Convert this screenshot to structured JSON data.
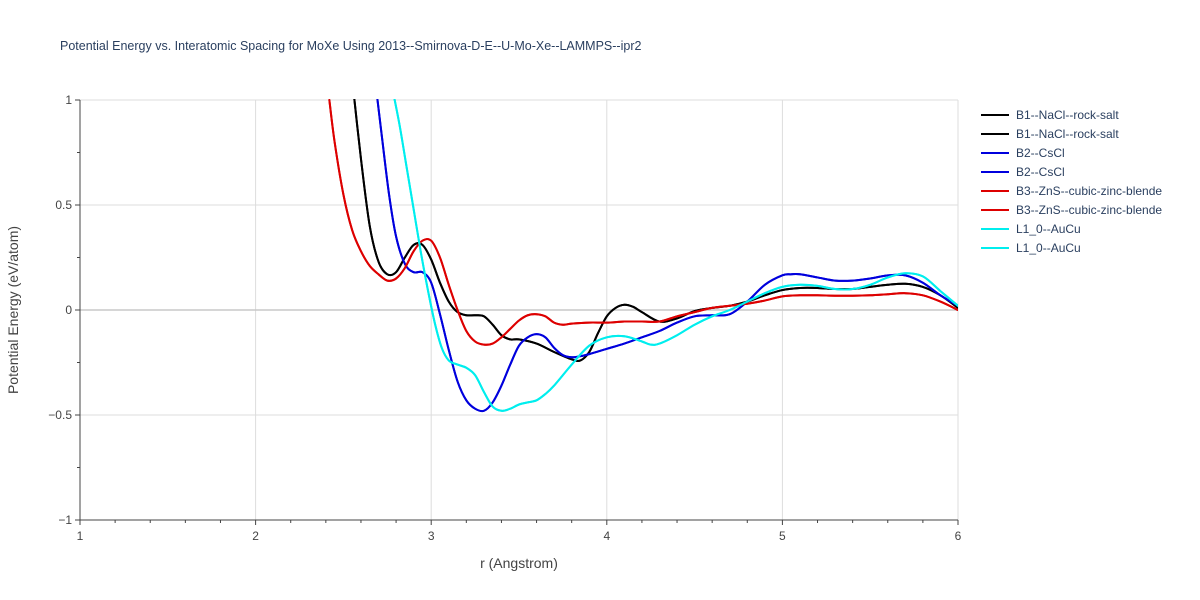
{
  "chart_data": {
    "type": "line",
    "title": "Potential Energy vs. Interatomic Spacing for MoXe Using 2013--Smirnova-D-E--U-Mo-Xe--LAMMPS--ipr2",
    "xlabel": "r (Angstrom)",
    "ylabel": "Potential Energy (eV/atom)",
    "xlim": [
      1,
      6
    ],
    "ylim": [
      -1,
      1
    ],
    "xticks": [
      1,
      2,
      3,
      4,
      5,
      6
    ],
    "xtick_labels": [
      "1",
      "2",
      "3",
      "4",
      "5",
      "6"
    ],
    "yticks": [
      -1,
      -0.5,
      0,
      0.5,
      1
    ],
    "ytick_labels": [
      "−1",
      "−0.5",
      "0",
      "0.5",
      "1"
    ],
    "grid": true,
    "legend_position": "right",
    "series": [
      {
        "name": "B1--NaCl--rock-salt",
        "color": "#000000",
        "x": [
          2.55,
          2.6,
          2.65,
          2.7,
          2.75,
          2.8,
          2.85,
          2.9,
          2.95,
          3.0,
          3.05,
          3.1,
          3.15,
          3.2,
          3.25,
          3.3,
          3.35,
          3.4,
          3.45,
          3.5,
          3.6,
          3.7,
          3.8,
          3.85,
          3.9,
          3.95,
          4.0,
          4.05,
          4.1,
          4.15,
          4.2,
          4.3,
          4.4,
          4.5,
          4.6,
          4.7,
          4.8,
          4.9,
          5.0,
          5.1,
          5.2,
          5.3,
          5.4,
          5.5,
          5.6,
          5.7,
          5.8,
          5.9,
          6.0
        ],
        "y": [
          1.1,
          0.72,
          0.4,
          0.23,
          0.17,
          0.18,
          0.25,
          0.31,
          0.31,
          0.24,
          0.13,
          0.04,
          -0.01,
          -0.025,
          -0.025,
          -0.03,
          -0.07,
          -0.12,
          -0.14,
          -0.14,
          -0.16,
          -0.2,
          -0.235,
          -0.24,
          -0.2,
          -0.11,
          -0.03,
          0.01,
          0.025,
          0.015,
          -0.01,
          -0.055,
          -0.04,
          -0.005,
          0.01,
          0.02,
          0.04,
          0.07,
          0.095,
          0.105,
          0.105,
          0.1,
          0.1,
          0.11,
          0.12,
          0.125,
          0.11,
          0.07,
          0.01
        ]
      },
      {
        "name": "B1--NaCl--rock-salt",
        "color": "#000000",
        "x": [
          2.55,
          2.6,
          2.65,
          2.7,
          2.75,
          2.8,
          2.85,
          2.9,
          2.95,
          3.0,
          3.05,
          3.1,
          3.15,
          3.2,
          3.25,
          3.3,
          3.35,
          3.4,
          3.45,
          3.5,
          3.6,
          3.7,
          3.8,
          3.85,
          3.9,
          3.95,
          4.0,
          4.05,
          4.1,
          4.15,
          4.2,
          4.3,
          4.4,
          4.5,
          4.6,
          4.7,
          4.8,
          4.9,
          5.0,
          5.1,
          5.2,
          5.3,
          5.4,
          5.5,
          5.6,
          5.7,
          5.8,
          5.9,
          6.0
        ],
        "y": [
          1.1,
          0.72,
          0.4,
          0.23,
          0.17,
          0.18,
          0.25,
          0.31,
          0.31,
          0.24,
          0.13,
          0.04,
          -0.01,
          -0.025,
          -0.025,
          -0.03,
          -0.07,
          -0.12,
          -0.14,
          -0.14,
          -0.16,
          -0.2,
          -0.235,
          -0.24,
          -0.2,
          -0.11,
          -0.03,
          0.01,
          0.025,
          0.015,
          -0.01,
          -0.055,
          -0.04,
          -0.005,
          0.01,
          0.02,
          0.04,
          0.07,
          0.095,
          0.105,
          0.105,
          0.1,
          0.1,
          0.11,
          0.12,
          0.125,
          0.11,
          0.07,
          0.01
        ]
      },
      {
        "name": "B2--CsCl",
        "color": "#0000dd",
        "x": [
          2.68,
          2.72,
          2.76,
          2.8,
          2.85,
          2.9,
          2.95,
          3.0,
          3.05,
          3.1,
          3.15,
          3.2,
          3.25,
          3.3,
          3.35,
          3.4,
          3.45,
          3.5,
          3.55,
          3.6,
          3.65,
          3.7,
          3.75,
          3.8,
          3.85,
          3.9,
          4.0,
          4.1,
          4.2,
          4.3,
          4.4,
          4.5,
          4.6,
          4.7,
          4.8,
          4.9,
          5.0,
          5.05,
          5.1,
          5.2,
          5.3,
          5.4,
          5.5,
          5.6,
          5.7,
          5.8,
          5.9,
          6.0
        ],
        "y": [
          1.1,
          0.82,
          0.55,
          0.35,
          0.22,
          0.18,
          0.18,
          0.13,
          -0.02,
          -0.19,
          -0.34,
          -0.43,
          -0.47,
          -0.48,
          -0.44,
          -0.36,
          -0.26,
          -0.17,
          -0.13,
          -0.115,
          -0.13,
          -0.18,
          -0.215,
          -0.225,
          -0.22,
          -0.21,
          -0.185,
          -0.16,
          -0.13,
          -0.1,
          -0.06,
          -0.03,
          -0.025,
          -0.02,
          0.04,
          0.12,
          0.165,
          0.17,
          0.17,
          0.155,
          0.14,
          0.14,
          0.15,
          0.165,
          0.165,
          0.13,
          0.07,
          0.02
        ]
      },
      {
        "name": "B2--CsCl",
        "color": "#0000dd",
        "x": [
          2.68,
          2.72,
          2.76,
          2.8,
          2.85,
          2.9,
          2.95,
          3.0,
          3.05,
          3.1,
          3.15,
          3.2,
          3.25,
          3.3,
          3.35,
          3.4,
          3.45,
          3.5,
          3.55,
          3.6,
          3.65,
          3.7,
          3.75,
          3.8,
          3.85,
          3.9,
          4.0,
          4.1,
          4.2,
          4.3,
          4.4,
          4.5,
          4.6,
          4.7,
          4.8,
          4.9,
          5.0,
          5.05,
          5.1,
          5.2,
          5.3,
          5.4,
          5.5,
          5.6,
          5.7,
          5.8,
          5.9,
          6.0
        ],
        "y": [
          1.1,
          0.82,
          0.55,
          0.35,
          0.22,
          0.18,
          0.18,
          0.13,
          -0.02,
          -0.19,
          -0.34,
          -0.43,
          -0.47,
          -0.48,
          -0.44,
          -0.36,
          -0.26,
          -0.17,
          -0.13,
          -0.115,
          -0.13,
          -0.18,
          -0.215,
          -0.225,
          -0.22,
          -0.21,
          -0.185,
          -0.16,
          -0.13,
          -0.1,
          -0.06,
          -0.03,
          -0.025,
          -0.02,
          0.04,
          0.12,
          0.165,
          0.17,
          0.17,
          0.155,
          0.14,
          0.14,
          0.15,
          0.165,
          0.165,
          0.13,
          0.07,
          0.02
        ]
      },
      {
        "name": "B3--ZnS--cubic-zinc-blende",
        "color": "#dd0000",
        "x": [
          2.42,
          2.45,
          2.5,
          2.55,
          2.6,
          2.65,
          2.7,
          2.75,
          2.8,
          2.85,
          2.9,
          2.95,
          3.0,
          3.05,
          3.1,
          3.15,
          3.2,
          3.25,
          3.3,
          3.35,
          3.4,
          3.45,
          3.5,
          3.55,
          3.6,
          3.65,
          3.7,
          3.75,
          3.8,
          3.9,
          4.0,
          4.1,
          4.2,
          4.3,
          4.4,
          4.5,
          4.6,
          4.7,
          4.8,
          4.9,
          5.0,
          5.1,
          5.2,
          5.3,
          5.4,
          5.5,
          5.6,
          5.7,
          5.8,
          5.9,
          6.0
        ],
        "y": [
          1.0,
          0.8,
          0.55,
          0.38,
          0.28,
          0.21,
          0.17,
          0.14,
          0.15,
          0.2,
          0.28,
          0.33,
          0.33,
          0.25,
          0.12,
          0.0,
          -0.1,
          -0.15,
          -0.165,
          -0.16,
          -0.13,
          -0.09,
          -0.05,
          -0.025,
          -0.02,
          -0.03,
          -0.06,
          -0.07,
          -0.065,
          -0.06,
          -0.06,
          -0.055,
          -0.055,
          -0.055,
          -0.03,
          -0.01,
          0.01,
          0.02,
          0.03,
          0.045,
          0.065,
          0.07,
          0.07,
          0.068,
          0.068,
          0.07,
          0.075,
          0.08,
          0.07,
          0.04,
          0.0
        ]
      },
      {
        "name": "B3--ZnS--cubic-zinc-blende",
        "color": "#dd0000",
        "x": [
          2.42,
          2.45,
          2.5,
          2.55,
          2.6,
          2.65,
          2.7,
          2.75,
          2.8,
          2.85,
          2.9,
          2.95,
          3.0,
          3.05,
          3.1,
          3.15,
          3.2,
          3.25,
          3.3,
          3.35,
          3.4,
          3.45,
          3.5,
          3.55,
          3.6,
          3.65,
          3.7,
          3.75,
          3.8,
          3.9,
          4.0,
          4.1,
          4.2,
          4.3,
          4.4,
          4.5,
          4.6,
          4.7,
          4.8,
          4.9,
          5.0,
          5.1,
          5.2,
          5.3,
          5.4,
          5.5,
          5.6,
          5.7,
          5.8,
          5.9,
          6.0
        ],
        "y": [
          1.0,
          0.8,
          0.55,
          0.38,
          0.28,
          0.21,
          0.17,
          0.14,
          0.15,
          0.2,
          0.28,
          0.33,
          0.33,
          0.25,
          0.12,
          0.0,
          -0.1,
          -0.15,
          -0.165,
          -0.16,
          -0.13,
          -0.09,
          -0.05,
          -0.025,
          -0.02,
          -0.03,
          -0.06,
          -0.07,
          -0.065,
          -0.06,
          -0.06,
          -0.055,
          -0.055,
          -0.055,
          -0.03,
          -0.01,
          0.01,
          0.02,
          0.03,
          0.045,
          0.065,
          0.07,
          0.07,
          0.068,
          0.068,
          0.07,
          0.075,
          0.08,
          0.07,
          0.04,
          0.0
        ]
      },
      {
        "name": "L1_0--AuCu",
        "color": "#00eeee",
        "x": [
          2.78,
          2.82,
          2.86,
          2.9,
          2.94,
          2.98,
          3.02,
          3.06,
          3.1,
          3.15,
          3.2,
          3.25,
          3.3,
          3.35,
          3.4,
          3.45,
          3.5,
          3.55,
          3.6,
          3.65,
          3.7,
          3.8,
          3.9,
          4.0,
          4.1,
          4.2,
          4.25,
          4.3,
          4.4,
          4.5,
          4.6,
          4.7,
          4.8,
          4.9,
          5.0,
          5.1,
          5.2,
          5.3,
          5.4,
          5.5,
          5.6,
          5.7,
          5.8,
          5.9,
          6.0
        ],
        "y": [
          1.05,
          0.88,
          0.68,
          0.48,
          0.28,
          0.1,
          -0.06,
          -0.18,
          -0.24,
          -0.26,
          -0.275,
          -0.31,
          -0.39,
          -0.46,
          -0.48,
          -0.47,
          -0.45,
          -0.44,
          -0.43,
          -0.4,
          -0.36,
          -0.26,
          -0.17,
          -0.13,
          -0.125,
          -0.15,
          -0.165,
          -0.16,
          -0.12,
          -0.07,
          -0.03,
          0.0,
          0.04,
          0.08,
          0.11,
          0.12,
          0.115,
          0.1,
          0.1,
          0.12,
          0.155,
          0.175,
          0.16,
          0.09,
          0.02
        ]
      },
      {
        "name": "L1_0--AuCu",
        "color": "#00eeee",
        "x": [
          2.78,
          2.82,
          2.86,
          2.9,
          2.94,
          2.98,
          3.02,
          3.06,
          3.1,
          3.15,
          3.2,
          3.25,
          3.3,
          3.35,
          3.4,
          3.45,
          3.5,
          3.55,
          3.6,
          3.65,
          3.7,
          3.8,
          3.9,
          4.0,
          4.1,
          4.2,
          4.25,
          4.3,
          4.4,
          4.5,
          4.6,
          4.7,
          4.8,
          4.9,
          5.0,
          5.1,
          5.2,
          5.3,
          5.4,
          5.5,
          5.6,
          5.7,
          5.8,
          5.9,
          6.0
        ],
        "y": [
          1.05,
          0.88,
          0.68,
          0.48,
          0.28,
          0.1,
          -0.06,
          -0.18,
          -0.24,
          -0.26,
          -0.275,
          -0.31,
          -0.39,
          -0.46,
          -0.48,
          -0.47,
          -0.45,
          -0.44,
          -0.43,
          -0.4,
          -0.36,
          -0.26,
          -0.17,
          -0.13,
          -0.125,
          -0.15,
          -0.165,
          -0.16,
          -0.12,
          -0.07,
          -0.03,
          0.0,
          0.04,
          0.08,
          0.11,
          0.12,
          0.115,
          0.1,
          0.1,
          0.12,
          0.155,
          0.175,
          0.16,
          0.09,
          0.02
        ]
      }
    ]
  }
}
